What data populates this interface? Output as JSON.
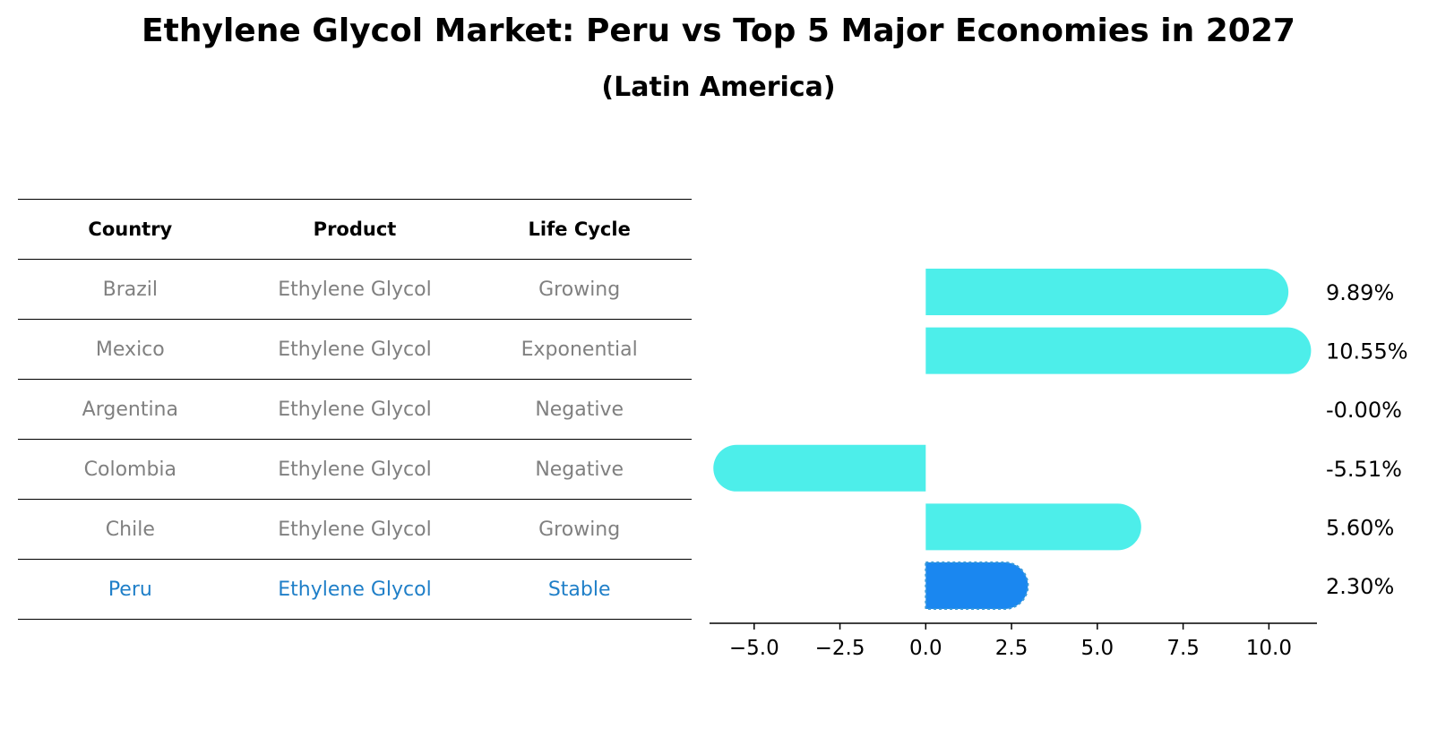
{
  "title": "Ethylene Glycol Market: Peru vs Top 5 Major Economies in 2027",
  "subtitle": "(Latin America)",
  "table": {
    "headers": [
      "Country",
      "Product",
      "Life Cycle"
    ],
    "rows": [
      {
        "country": "Brazil",
        "product": "Ethylene Glycol",
        "life_cycle": "Growing"
      },
      {
        "country": "Mexico",
        "product": "Ethylene Glycol",
        "life_cycle": "Exponential"
      },
      {
        "country": "Argentina",
        "product": "Ethylene Glycol",
        "life_cycle": "Negative"
      },
      {
        "country": "Colombia",
        "product": "Ethylene Glycol",
        "life_cycle": "Negative"
      },
      {
        "country": "Chile",
        "product": "Ethylene Glycol",
        "life_cycle": "Growing"
      },
      {
        "country": "Peru",
        "product": "Ethylene Glycol",
        "life_cycle": "Stable"
      }
    ]
  },
  "chart_data": {
    "type": "bar",
    "orientation": "horizontal",
    "categories": [
      "Brazil",
      "Mexico",
      "Argentina",
      "Colombia",
      "Chile",
      "Peru"
    ],
    "values": [
      9.89,
      10.55,
      -0.0,
      -5.51,
      5.6,
      2.3
    ],
    "value_labels": [
      "9.89%",
      "10.55%",
      "-0.00%",
      "-5.51%",
      "5.60%",
      "2.30%"
    ],
    "highlight": "Peru",
    "xlim": [
      -6.3,
      11.4
    ],
    "xticks": [
      -5.0,
      -2.5,
      0.0,
      2.5,
      5.0,
      7.5,
      10.0
    ],
    "xtick_labels": [
      "−5.0",
      "−2.5",
      "0.0",
      "2.5",
      "5.0",
      "7.5",
      "10.0"
    ],
    "colors": {
      "bar": "#4deeea",
      "highlight": "#1a87f0",
      "highlight_edge": "#3a9ad9"
    },
    "grid": false,
    "legend": "none"
  }
}
